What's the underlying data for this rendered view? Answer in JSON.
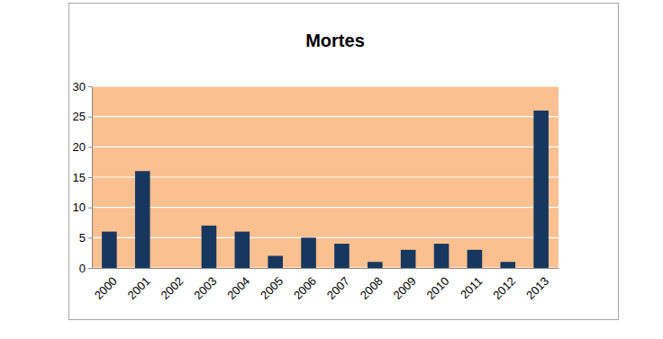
{
  "chart_data": {
    "type": "bar",
    "title": "Mortes",
    "categories": [
      "2000",
      "2001",
      "2002",
      "2003",
      "2004",
      "2005",
      "2006",
      "2007",
      "2008",
      "2009",
      "2010",
      "2011",
      "2012",
      "2013"
    ],
    "values": [
      6,
      16,
      0,
      7,
      6,
      2,
      5,
      4,
      1,
      3,
      4,
      3,
      1,
      26
    ],
    "color": "#17375e",
    "ylim": [
      0,
      30
    ],
    "yticks": [
      0,
      5,
      10,
      15,
      20,
      25,
      30
    ],
    "grid": true
  }
}
